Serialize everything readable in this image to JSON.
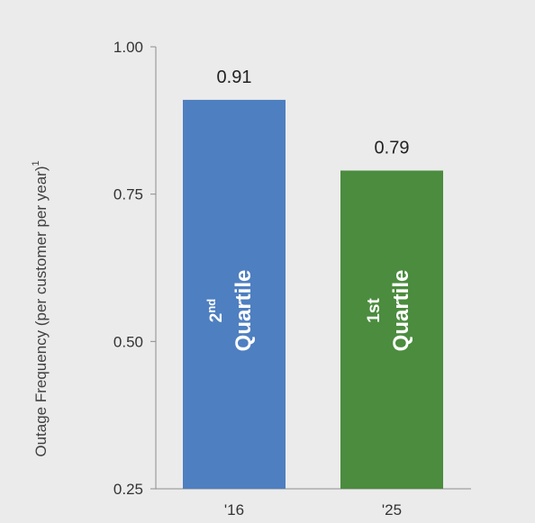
{
  "chart_data": {
    "type": "bar",
    "categories": [
      "'16",
      "'25"
    ],
    "values": [
      0.91,
      0.79
    ],
    "value_labels": [
      "0.91",
      "0.79"
    ],
    "bar_colors": [
      "#4e7fc0",
      "#4b8c3e"
    ],
    "in_bar_labels": [
      {
        "rank": "2",
        "suffix": "nd",
        "word": "Quartile"
      },
      {
        "rank": "1st",
        "suffix": "",
        "word": "Quartile"
      }
    ],
    "ylabel": "Outage Frequency (per customer per year)",
    "ylabel_superscript": "1",
    "ylim": [
      0.25,
      1.0
    ],
    "yticks": [
      0.25,
      0.5,
      0.75,
      1.0
    ],
    "ytick_labels": [
      "0.25",
      "0.50",
      "0.75",
      "1.00"
    ],
    "grid": false,
    "legend": "none"
  }
}
